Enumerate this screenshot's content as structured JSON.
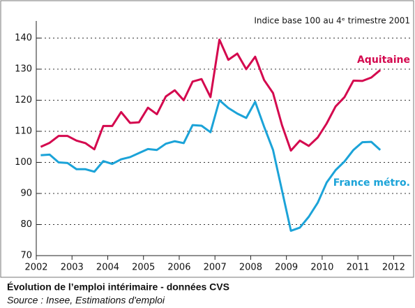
{
  "chart_data": {
    "type": "line",
    "subtitle": "Indice base 100 au 4ᵉ trimestre 2001",
    "title": "Évolution de l’emploi intérimaire - données CVS",
    "source": "Source : Insee, Estimations d'emploi",
    "x": [
      2002.125,
      2002.375,
      2002.625,
      2002.875,
      2003.125,
      2003.375,
      2003.625,
      2003.875,
      2004.125,
      2004.375,
      2004.625,
      2004.875,
      2005.125,
      2005.375,
      2005.625,
      2005.875,
      2006.125,
      2006.375,
      2006.625,
      2006.875,
      2007.125,
      2007.375,
      2007.625,
      2007.875,
      2008.125,
      2008.375,
      2008.625,
      2008.875,
      2009.125,
      2009.375,
      2009.625,
      2009.875,
      2010.125,
      2010.375,
      2010.625,
      2010.875,
      2011.125,
      2011.375,
      2011.625
    ],
    "series": [
      {
        "name": "Aquitaine",
        "color": "#d4084e",
        "values": [
          105,
          106.3,
          108.5,
          108.5,
          107,
          106.2,
          104.2,
          111.7,
          111.7,
          116.2,
          112.7,
          112.9,
          117.6,
          115.5,
          121.2,
          123.2,
          120,
          126,
          126.8,
          121,
          139.5,
          133,
          135,
          130,
          134,
          126.5,
          122.3,
          112,
          103.8,
          107,
          105.3,
          108,
          112.5,
          118,
          121,
          126.3,
          126.2,
          127.3,
          129.7
        ]
      },
      {
        "name": "France métro.",
        "color": "#1ba3d8",
        "values": [
          102.3,
          102.5,
          100,
          99.8,
          97.8,
          97.8,
          97,
          100.4,
          99.5,
          101,
          101.7,
          103,
          104.3,
          104,
          106,
          106.8,
          106.2,
          112,
          111.8,
          109.7,
          120,
          117.5,
          115.7,
          114.3,
          119.5,
          111.5,
          104,
          91,
          78,
          79,
          82.5,
          87,
          93.5,
          97.5,
          100.3,
          104,
          106.5,
          106.6,
          104
        ]
      }
    ],
    "xlim": [
      2002,
      2012.5
    ],
    "xticks": [
      2002,
      2003,
      2004,
      2005,
      2006,
      2007,
      2008,
      2009,
      2010,
      2011,
      2012
    ],
    "ylim": [
      70,
      150
    ],
    "yticks": [
      70,
      80,
      90,
      100,
      110,
      120,
      130,
      140
    ],
    "grid": true
  }
}
